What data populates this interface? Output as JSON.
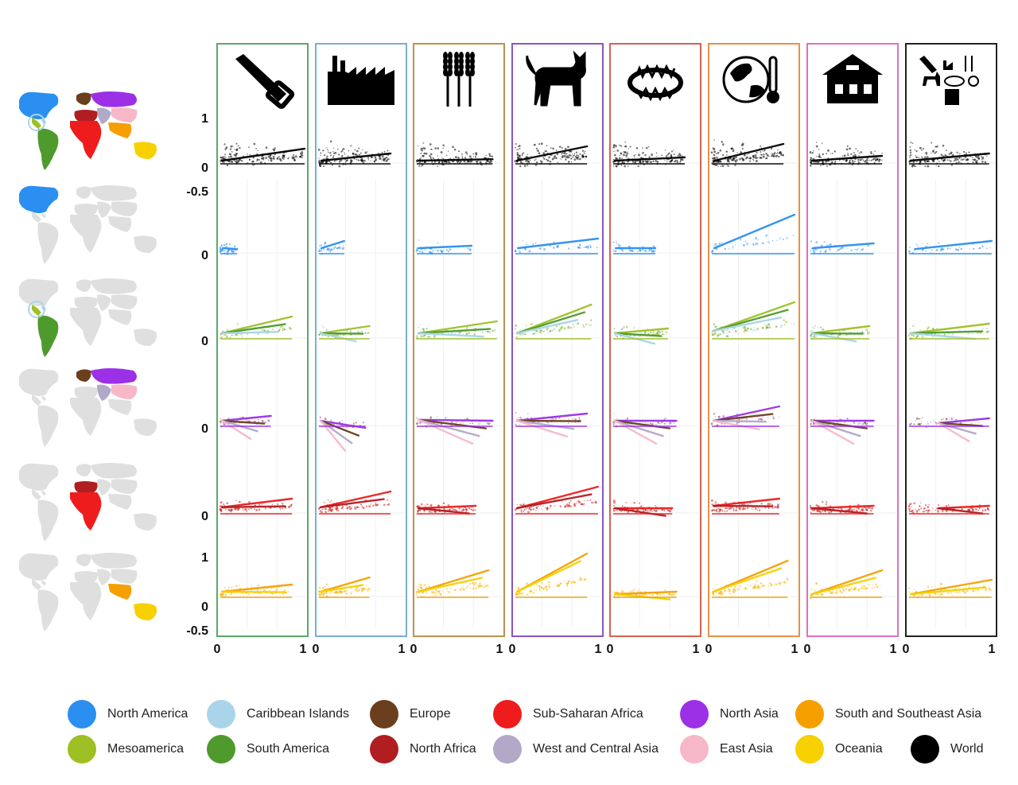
{
  "colors": {
    "North America": "#2a8ff0",
    "Caribbean Islands": "#a9d4ea",
    "Europe": "#6b3f1e",
    "Sub-Saharan Africa": "#ee1c1c",
    "North Asia": "#9b30e6",
    "South and Southeast Asia": "#f5a000",
    "Mesoamerica": "#9ec024",
    "South America": "#4e9a2c",
    "North Africa": "#b01e22",
    "West and Central Asia": "#b2a8c8",
    "East Asia": "#f6b8c8",
    "Oceania": "#f7d000",
    "World": "#000000",
    "map_grey": "#d9d9d9"
  },
  "chart_data": {
    "type": "scatter",
    "layout": "small-multiples grid (rows = regions, columns = threat drivers)",
    "columns": [
      {
        "icon": "saw-icon",
        "frame_color": "#5aa86a"
      },
      {
        "icon": "factory-icon",
        "frame_color": "#7aaed0"
      },
      {
        "icon": "wheat-icon",
        "frame_color": "#c09050"
      },
      {
        "icon": "cat-icon",
        "frame_color": "#8a55c0"
      },
      {
        "icon": "trap-icon",
        "frame_color": "#d86050"
      },
      {
        "icon": "climate-icon",
        "frame_color": "#e89048"
      },
      {
        "icon": "house-icon",
        "frame_color": "#e070c0"
      },
      {
        "icon": "combined-threats-icon",
        "frame_color": "#222222"
      }
    ],
    "rows": [
      {
        "region": "World",
        "colors": [
          "World"
        ]
      },
      {
        "region": "North America",
        "colors": [
          "North America"
        ]
      },
      {
        "region": "Americas south",
        "colors": [
          "Mesoamerica",
          "South America",
          "Caribbean Islands"
        ]
      },
      {
        "region": "Europe and Asia",
        "colors": [
          "North Asia",
          "Europe",
          "West and Central Asia",
          "East Asia"
        ]
      },
      {
        "region": "Africa",
        "colors": [
          "Sub-Saharan Africa",
          "North Africa"
        ]
      },
      {
        "region": "South and Southeast Asia / Oceania",
        "colors": [
          "South and Southeast Asia",
          "Oceania"
        ]
      }
    ],
    "x_range": [
      0,
      1
    ],
    "y_range": [
      -0.5,
      1
    ],
    "x_tick_labels": [
      "0",
      "1",
      "0",
      "1",
      "0",
      "1",
      "0",
      "1",
      "0",
      "1",
      "0",
      "1",
      "0",
      "1",
      "0",
      "1"
    ],
    "y_tick_labels": [
      {
        "row": 0,
        "labels": [
          "1",
          "0",
          "-0.5"
        ]
      },
      {
        "row": 1,
        "labels": [
          "0"
        ]
      },
      {
        "row": 2,
        "labels": [
          "0"
        ]
      },
      {
        "row": 3,
        "labels": [
          "0"
        ]
      },
      {
        "row": 4,
        "labels": [
          "0"
        ]
      },
      {
        "row": 5,
        "labels": [
          "1",
          "0",
          "-0.5"
        ]
      }
    ],
    "trend_lines": [
      [
        [
          0.02,
          0.05,
          1.0,
          0.3
        ],
        [
          0.03,
          0.05,
          0.85,
          0.2
        ],
        [
          0.02,
          0.05,
          0.9,
          0.08
        ],
        [
          0.02,
          0.05,
          0.85,
          0.35
        ],
        [
          0.02,
          0.05,
          0.85,
          0.12
        ],
        [
          0.03,
          0.05,
          0.85,
          0.4
        ],
        [
          0.02,
          0.05,
          0.85,
          0.15
        ],
        [
          0.02,
          0.05,
          0.95,
          0.2
        ]
      ],
      [
        [
          0.03,
          0.1,
          0.2,
          0.08
        ],
        [
          0.03,
          0.1,
          0.3,
          0.25
        ],
        [
          0.03,
          0.1,
          0.65,
          0.15
        ],
        [
          0.03,
          0.1,
          0.98,
          0.3
        ],
        [
          0.03,
          0.1,
          0.5,
          0.1
        ],
        [
          0.03,
          0.1,
          0.98,
          0.8
        ],
        [
          0.03,
          0.1,
          0.75,
          0.2
        ],
        [
          0.07,
          0.08,
          0.98,
          0.25
        ]
      ],
      [
        [
          0.02,
          0.1,
          0.85,
          0.45
        ],
        [
          0.02,
          0.1,
          0.6,
          0.25
        ],
        [
          0.02,
          0.1,
          0.95,
          0.35
        ],
        [
          0.02,
          0.1,
          0.9,
          0.7
        ],
        [
          0.02,
          0.1,
          0.65,
          0.2
        ],
        [
          0.02,
          0.15,
          0.98,
          0.75
        ],
        [
          0.02,
          0.1,
          0.7,
          0.25
        ],
        [
          0.02,
          0.1,
          0.95,
          0.3
        ]
      ],
      [
        [
          0.02,
          0.1,
          0.6,
          0.2
        ],
        [
          0.02,
          0.1,
          0.55,
          -0.05
        ],
        [
          0.02,
          0.12,
          0.9,
          0.1
        ],
        [
          0.02,
          0.1,
          0.85,
          0.25
        ],
        [
          0.02,
          0.1,
          0.75,
          0.1
        ],
        [
          0.02,
          0.1,
          0.8,
          0.4
        ],
        [
          0.02,
          0.1,
          0.75,
          0.1
        ],
        [
          0.35,
          0.05,
          0.95,
          0.15
        ]
      ],
      [
        [
          0.02,
          0.12,
          0.85,
          0.3
        ],
        [
          0.02,
          0.12,
          0.85,
          0.45
        ],
        [
          0.02,
          0.1,
          0.7,
          0.15
        ],
        [
          0.02,
          0.1,
          0.98,
          0.55
        ],
        [
          0.02,
          0.1,
          0.7,
          0.1
        ],
        [
          0.02,
          0.15,
          0.8,
          0.3
        ],
        [
          0.02,
          0.1,
          0.75,
          0.15
        ],
        [
          0.35,
          0.1,
          0.95,
          0.15
        ]
      ],
      [
        [
          0.02,
          0.1,
          0.85,
          0.25
        ],
        [
          0.02,
          0.1,
          0.6,
          0.4
        ],
        [
          0.02,
          0.1,
          0.85,
          0.55
        ],
        [
          0.02,
          0.1,
          0.85,
          0.9
        ],
        [
          0.02,
          0.05,
          0.75,
          0.1
        ],
        [
          0.02,
          0.1,
          0.9,
          0.75
        ],
        [
          0.02,
          0.05,
          0.85,
          0.55
        ],
        [
          0.02,
          0.05,
          0.98,
          0.35
        ]
      ]
    ],
    "legend": [
      "North America",
      "Caribbean Islands",
      "Europe",
      "Sub-Saharan Africa",
      "North Asia",
      "South and Southeast Asia",
      "Mesoamerica",
      "South America",
      "North Africa",
      "West and Central Asia",
      "East Asia",
      "Oceania",
      "World"
    ]
  },
  "legend_labels": [
    "North America",
    "Caribbean Islands",
    "Europe",
    "Sub-Saharan Africa",
    "North Asia",
    "South and Southeast Asia",
    "Mesoamerica",
    "South America",
    "North Africa",
    "West and Central Asia",
    "East Asia",
    "Oceania",
    "World"
  ]
}
